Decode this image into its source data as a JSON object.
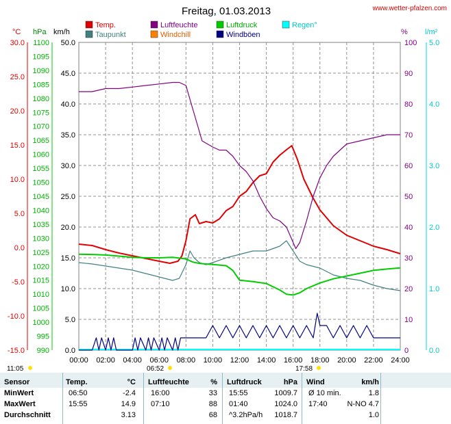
{
  "site": "www.wetter-pfalzen.com",
  "chart_data": {
    "type": "line",
    "title": "Freitag, 01.03.2013",
    "x_ticks": [
      "00:00",
      "02:00",
      "04:00",
      "06:00",
      "08:00",
      "10:00",
      "12:00",
      "14:00",
      "16:00",
      "18:00",
      "20:00",
      "22:00",
      "24:00"
    ],
    "xlim": [
      0,
      24
    ],
    "grid": true,
    "axes": {
      "temp": {
        "unit": "°C",
        "min": -15,
        "max": 30,
        "ticks": [
          "30.0",
          "25.0",
          "20.0",
          "15.0",
          "10.0",
          "5.0",
          "0.0",
          "-5.0",
          "-10.0",
          "-15.0"
        ],
        "color": "#e00000"
      },
      "pressure": {
        "unit": "hPa",
        "min": 990,
        "max": 1100,
        "ticks": [
          "1100",
          "1095",
          "1090",
          "1085",
          "1080",
          "1075",
          "1070",
          "1065",
          "1060",
          "1055",
          "1050",
          "1045",
          "1040",
          "1035",
          "1030",
          "1025",
          "1020",
          "1015",
          "1010",
          "1005",
          "1000",
          "995",
          "990"
        ],
        "color": "#00cc00"
      },
      "wind": {
        "unit": "km/h",
        "min": 0,
        "max": 50,
        "ticks": [
          "50.0",
          "45.0",
          "40.0",
          "35.0",
          "30.0",
          "25.0",
          "20.0",
          "15.0",
          "10.0",
          "5.0",
          "0.0"
        ],
        "color": "#000000"
      },
      "humidity": {
        "unit": "%",
        "min": 0,
        "max": 100,
        "ticks": [
          "100",
          "90",
          "80",
          "70",
          "60",
          "50",
          "40",
          "30",
          "20",
          "10",
          "0"
        ],
        "color": "#800080"
      },
      "rain": {
        "unit": "l/m²",
        "min": 0,
        "max": 5,
        "ticks": [
          "5.0",
          "4.0",
          "3.0",
          "2.0",
          "1.0",
          "0.0"
        ],
        "color": "#00d8d8"
      }
    },
    "legend": [
      {
        "name": "Temp.",
        "color": "#e00000"
      },
      {
        "name": "Luftfeuchte",
        "color": "#800080"
      },
      {
        "name": "Luftdruck",
        "color": "#00cc00"
      },
      {
        "name": "Regen°",
        "color": "#00ffff"
      },
      {
        "name": "Taupunkt",
        "color": "#408080"
      },
      {
        "name": "Windchill",
        "color": "#ff8000"
      },
      {
        "name": "Windböen",
        "color": "#000080"
      }
    ],
    "sun_markers": [
      "11:05",
      "06:52",
      "17:58"
    ],
    "series": [
      {
        "name": "Temp.",
        "axis": "temp",
        "color": "#e00000",
        "x": [
          0,
          1,
          2,
          3,
          4,
          5,
          6,
          6.8,
          7.4,
          7.7,
          8.0,
          8.3,
          8.7,
          9.0,
          9.5,
          10.0,
          10.5,
          11.0,
          11.5,
          12.0,
          12.5,
          13.0,
          13.5,
          14.0,
          14.5,
          15.0,
          15.5,
          15.9,
          16.3,
          16.8,
          17.5,
          18.0,
          19.0,
          20.0,
          21.0,
          22.0,
          23.0,
          24.0
        ],
        "values": [
          0.5,
          0.3,
          -0.3,
          -0.8,
          -1.2,
          -1.6,
          -2.0,
          -2.3,
          -2.0,
          -1.2,
          1.0,
          4.2,
          4.8,
          3.5,
          3.8,
          3.6,
          4.2,
          5.4,
          6.0,
          7.5,
          8.2,
          9.5,
          10.5,
          10.8,
          12.5,
          13.5,
          14.3,
          14.9,
          13.0,
          10.0,
          7.2,
          5.5,
          3.2,
          1.8,
          1.0,
          0.2,
          -0.3,
          -0.9
        ]
      },
      {
        "name": "Taupunkt",
        "axis": "temp",
        "color": "#408080",
        "x": [
          0,
          1,
          2,
          3,
          4,
          5,
          6,
          7.0,
          7.5,
          8.0,
          8.3,
          8.6,
          9.0,
          9.5,
          10,
          11,
          12,
          13,
          14,
          15,
          15.5,
          16,
          16.5,
          17,
          18,
          19,
          20,
          21,
          22,
          23,
          24
        ],
        "values": [
          -2.2,
          -2.4,
          -2.7,
          -3.0,
          -3.3,
          -3.8,
          -4.3,
          -4.8,
          -4.5,
          -2.5,
          -0.5,
          -1.5,
          -2.2,
          -2.5,
          -2.2,
          -1.5,
          -1.0,
          -0.5,
          -0.5,
          0.2,
          1.0,
          -0.5,
          -2.0,
          -2.5,
          -3.0,
          -4.0,
          -4.5,
          -4.8,
          -5.5,
          -6.0,
          -6.3
        ]
      },
      {
        "name": "Luftfeuchte",
        "axis": "humidity",
        "color": "#800080",
        "x": [
          0,
          1,
          2,
          3,
          4,
          5,
          6,
          7,
          7.5,
          8,
          8.4,
          8.8,
          9.2,
          9.6,
          10,
          10.5,
          11,
          11.5,
          12,
          12.5,
          13,
          13.5,
          14,
          14.5,
          15,
          15.5,
          15.9,
          16.2,
          16.5,
          17,
          17.5,
          18,
          18.5,
          19,
          19.5,
          20,
          21,
          22,
          23,
          24
        ],
        "values": [
          84,
          84,
          85,
          85,
          85.5,
          86,
          86.5,
          87,
          87,
          86,
          80,
          74,
          68,
          67,
          66,
          65,
          65,
          63,
          60,
          58,
          55,
          50,
          46,
          43,
          42,
          40,
          36,
          33,
          35,
          42,
          50,
          56,
          60,
          63,
          65,
          67,
          68,
          69,
          70,
          70
        ]
      },
      {
        "name": "Luftdruck",
        "axis": "pressure",
        "color": "#00cc00",
        "x": [
          0,
          1,
          2,
          3,
          4,
          5,
          6,
          7,
          8,
          8.5,
          9,
          10,
          11,
          11.5,
          12,
          13,
          14,
          15,
          15.5,
          16,
          16.5,
          17,
          18,
          19,
          20,
          21,
          22,
          23,
          24
        ],
        "values": [
          1024.3,
          1024.2,
          1024.0,
          1023.6,
          1023.2,
          1023.0,
          1023.0,
          1023.2,
          1022.6,
          1021.5,
          1021.0,
          1020.6,
          1020.2,
          1018.5,
          1015.0,
          1014.5,
          1013.8,
          1011.5,
          1010.0,
          1009.7,
          1010.5,
          1012.0,
          1014.0,
          1015.5,
          1016.5,
          1017.5,
          1018.5,
          1019.0,
          1019.4
        ]
      },
      {
        "name": "Windböen",
        "axis": "wind",
        "color": "#000080",
        "x": [
          0,
          0.5,
          1.0,
          1.3,
          1.5,
          1.7,
          2.0,
          2.2,
          2.4,
          2.6,
          2.8,
          3.0,
          3.5,
          4.0,
          4.2,
          4.4,
          4.6,
          5.0,
          5.2,
          5.4,
          5.6,
          6.0,
          6.2,
          6.4,
          6.6,
          7.0,
          7.2,
          7.4,
          7.6,
          8.0,
          8.5,
          9.0,
          9.5,
          10.0,
          10.5,
          11.0,
          11.5,
          12.0,
          12.5,
          13.0,
          13.5,
          14.0,
          14.5,
          15.0,
          15.5,
          16.0,
          16.5,
          17.0,
          17.5,
          17.8,
          18.0,
          18.5,
          19.0,
          19.5,
          20.0,
          20.5,
          21.0,
          21.5,
          22.0,
          22.5,
          23.0,
          24.0
        ],
        "values": [
          0,
          0,
          0,
          2,
          0,
          2,
          0,
          2,
          0,
          2,
          0,
          0,
          0,
          0,
          2,
          0,
          2,
          0,
          2,
          0,
          2,
          0,
          2,
          0,
          2,
          0,
          2,
          0,
          2,
          2,
          2,
          2,
          2,
          4,
          2,
          4,
          2,
          4,
          2,
          4,
          2,
          4,
          2,
          4,
          2,
          4,
          2,
          4,
          2,
          6,
          4,
          4,
          2,
          4,
          2,
          4,
          2,
          4,
          2,
          2,
          2,
          2
        ]
      }
    ]
  },
  "stats": {
    "headers": [
      "Sensor",
      "Temp.",
      "°C",
      "Luftfeuchte",
      "%",
      "Luftdruck",
      "hPa",
      "Wind",
      "km/h"
    ],
    "rows": [
      {
        "label": "MinWert",
        "c1": "06:50",
        "c2": "-2.4",
        "c3": "16:00",
        "c4": "33",
        "c5": "15:55",
        "c6": "1009.7",
        "c7": "Ø 10 min.",
        "c8": "1.8"
      },
      {
        "label": "MaxWert",
        "c1": "15:55",
        "c2": "14.9",
        "c3": "07:10",
        "c4": "88",
        "c5": "01:40",
        "c6": "1024.0",
        "c7": "17:40",
        "c8": "N-NO 4.7"
      },
      {
        "label": "Durchschnitt",
        "c1": "",
        "c2": "3.13",
        "c3": "",
        "c4": "68",
        "c5": "^3.2hPa/h",
        "c6": "1018.7",
        "c7": "",
        "c8": "1.0"
      }
    ]
  }
}
